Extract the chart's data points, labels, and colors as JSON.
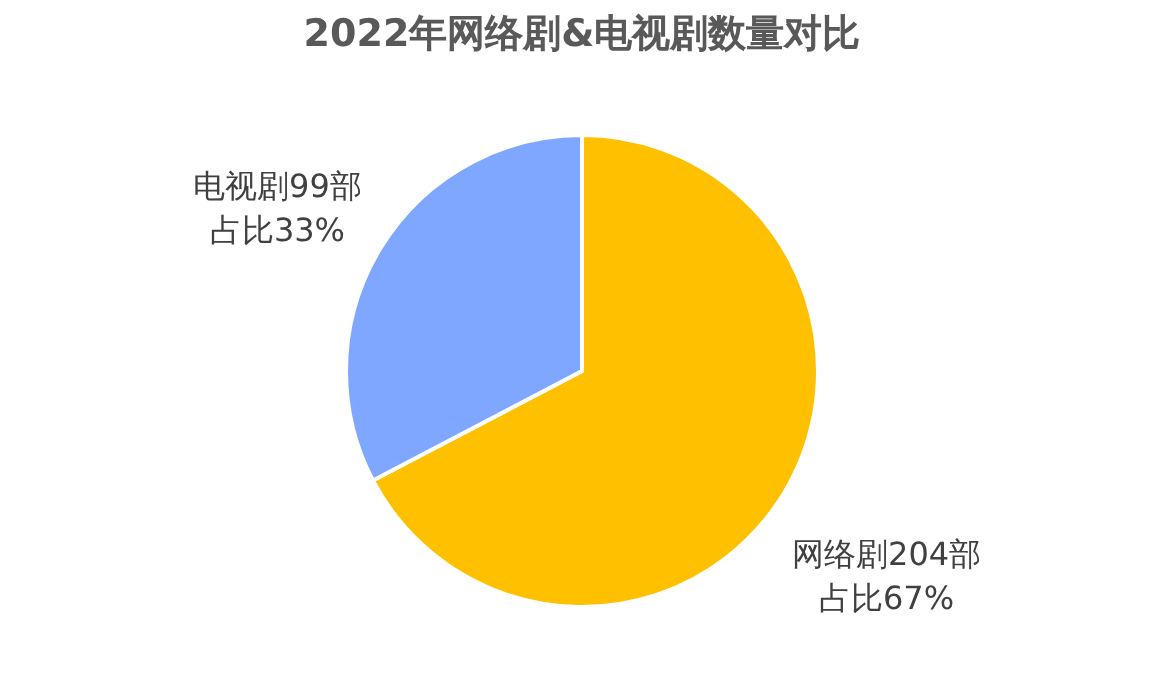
{
  "chart_data": {
    "type": "pie",
    "title": "2022年网络剧&电视剧数量对比",
    "categories": [
      "网络剧204部",
      "电视剧99部"
    ],
    "values": [
      204,
      99
    ],
    "colors": [
      "#ffc000",
      "#7fa7ff"
    ],
    "value_labels": [
      "占比67%",
      "占比33%"
    ]
  }
}
